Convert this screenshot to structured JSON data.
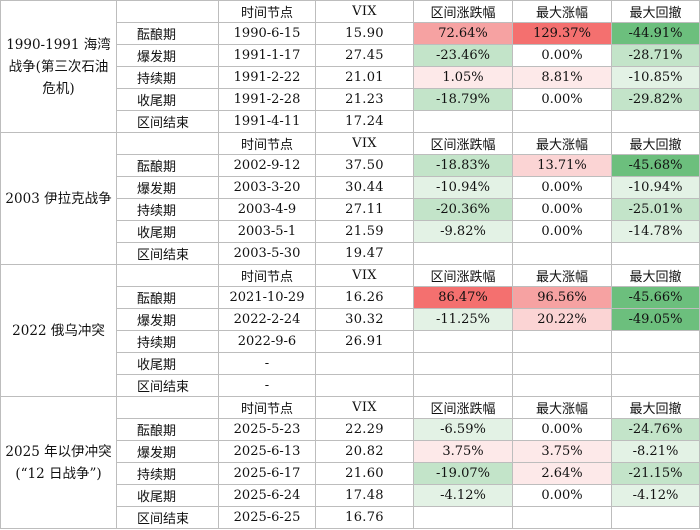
{
  "colors": {
    "strong_red": "#f4706f",
    "red": "#f6a2a2",
    "light_red": "#fbd4d4",
    "pale_red": "#fde9e9",
    "strong_green": "#6cbf7d",
    "green": "#9fd3a9",
    "light_green": "#c3e4c9",
    "pale_green": "#e3f2e5",
    "none": "#ffffff"
  },
  "headers": [
    "时间节点",
    "VIX",
    "区间涨跌幅",
    "最大涨幅",
    "最大回撤"
  ],
  "events": [
    {
      "name": "1990-1991 海湾战争(第三次石油危机)",
      "rows": [
        {
          "phase": "酝酿期",
          "date": "1990-6-15",
          "vix": "15.90",
          "change": "72.64%",
          "max_gain": "129.37%",
          "max_dd": "-44.91%",
          "c_change": "red",
          "c_gain": "strong_red",
          "c_dd": "strong_green"
        },
        {
          "phase": "爆发期",
          "date": "1991-1-17",
          "vix": "27.45",
          "change": "-23.46%",
          "max_gain": "0.00%",
          "max_dd": "-28.71%",
          "c_change": "light_green",
          "c_gain": "none",
          "c_dd": "light_green"
        },
        {
          "phase": "持续期",
          "date": "1991-2-22",
          "vix": "21.01",
          "change": "1.05%",
          "max_gain": "8.81%",
          "max_dd": "-10.85%",
          "c_change": "pale_red",
          "c_gain": "pale_red",
          "c_dd": "pale_green"
        },
        {
          "phase": "收尾期",
          "date": "1991-2-28",
          "vix": "21.23",
          "change": "-18.79%",
          "max_gain": "0.00%",
          "max_dd": "-29.82%",
          "c_change": "light_green",
          "c_gain": "none",
          "c_dd": "light_green"
        },
        {
          "phase": "区间结束",
          "date": "1991-4-11",
          "vix": "17.24",
          "change": "",
          "max_gain": "",
          "max_dd": "",
          "c_change": "none",
          "c_gain": "none",
          "c_dd": "none"
        }
      ]
    },
    {
      "name": "2003 伊拉克战争",
      "rows": [
        {
          "phase": "酝酿期",
          "date": "2002-9-12",
          "vix": "37.50",
          "change": "-18.83%",
          "max_gain": "13.71%",
          "max_dd": "-45.68%",
          "c_change": "light_green",
          "c_gain": "light_red",
          "c_dd": "strong_green"
        },
        {
          "phase": "爆发期",
          "date": "2003-3-20",
          "vix": "30.44",
          "change": "-10.94%",
          "max_gain": "0.00%",
          "max_dd": "-10.94%",
          "c_change": "pale_green",
          "c_gain": "none",
          "c_dd": "pale_green"
        },
        {
          "phase": "持续期",
          "date": "2003-4-9",
          "vix": "27.11",
          "change": "-20.36%",
          "max_gain": "0.00%",
          "max_dd": "-25.01%",
          "c_change": "light_green",
          "c_gain": "none",
          "c_dd": "light_green"
        },
        {
          "phase": "收尾期",
          "date": "2003-5-1",
          "vix": "21.59",
          "change": "-9.82%",
          "max_gain": "0.00%",
          "max_dd": "-14.78%",
          "c_change": "pale_green",
          "c_gain": "none",
          "c_dd": "pale_green"
        },
        {
          "phase": "区间结束",
          "date": "2003-5-30",
          "vix": "19.47",
          "change": "",
          "max_gain": "",
          "max_dd": "",
          "c_change": "none",
          "c_gain": "none",
          "c_dd": "none"
        }
      ]
    },
    {
      "name": "2022 俄乌冲突",
      "rows": [
        {
          "phase": "酝酿期",
          "date": "2021-10-29",
          "vix": "16.26",
          "change": "86.47%",
          "max_gain": "96.56%",
          "max_dd": "-45.66%",
          "c_change": "strong_red",
          "c_gain": "red",
          "c_dd": "strong_green"
        },
        {
          "phase": "爆发期",
          "date": "2022-2-24",
          "vix": "30.32",
          "change": "-11.25%",
          "max_gain": "20.22%",
          "max_dd": "-49.05%",
          "c_change": "pale_green",
          "c_gain": "light_red",
          "c_dd": "strong_green"
        },
        {
          "phase": "持续期",
          "date": "2022-9-6",
          "vix": "26.91",
          "change": "",
          "max_gain": "",
          "max_dd": "",
          "c_change": "none",
          "c_gain": "none",
          "c_dd": "none"
        },
        {
          "phase": "收尾期",
          "date": "-",
          "vix": "",
          "change": "",
          "max_gain": "",
          "max_dd": "",
          "c_change": "none",
          "c_gain": "none",
          "c_dd": "none"
        },
        {
          "phase": "区间结束",
          "date": "-",
          "vix": "",
          "change": "",
          "max_gain": "",
          "max_dd": "",
          "c_change": "none",
          "c_gain": "none",
          "c_dd": "none"
        }
      ]
    },
    {
      "name": "2025 年以伊冲突(“12 日战争”)",
      "rows": [
        {
          "phase": "酝酿期",
          "date": "2025-5-23",
          "vix": "22.29",
          "change": "-6.59%",
          "max_gain": "0.00%",
          "max_dd": "-24.76%",
          "c_change": "pale_green",
          "c_gain": "none",
          "c_dd": "light_green"
        },
        {
          "phase": "爆发期",
          "date": "2025-6-13",
          "vix": "20.82",
          "change": "3.75%",
          "max_gain": "3.75%",
          "max_dd": "-8.21%",
          "c_change": "pale_red",
          "c_gain": "pale_red",
          "c_dd": "pale_green"
        },
        {
          "phase": "持续期",
          "date": "2025-6-17",
          "vix": "21.60",
          "change": "-19.07%",
          "max_gain": "2.64%",
          "max_dd": "-21.15%",
          "c_change": "light_green",
          "c_gain": "pale_red",
          "c_dd": "light_green"
        },
        {
          "phase": "收尾期",
          "date": "2025-6-24",
          "vix": "17.48",
          "change": "-4.12%",
          "max_gain": "0.00%",
          "max_dd": "-4.12%",
          "c_change": "pale_green",
          "c_gain": "none",
          "c_dd": "pale_green"
        },
        {
          "phase": "区间结束",
          "date": "2025-6-25",
          "vix": "16.76",
          "change": "",
          "max_gain": "",
          "max_dd": "",
          "c_change": "none",
          "c_gain": "none",
          "c_dd": "none"
        }
      ]
    }
  ]
}
